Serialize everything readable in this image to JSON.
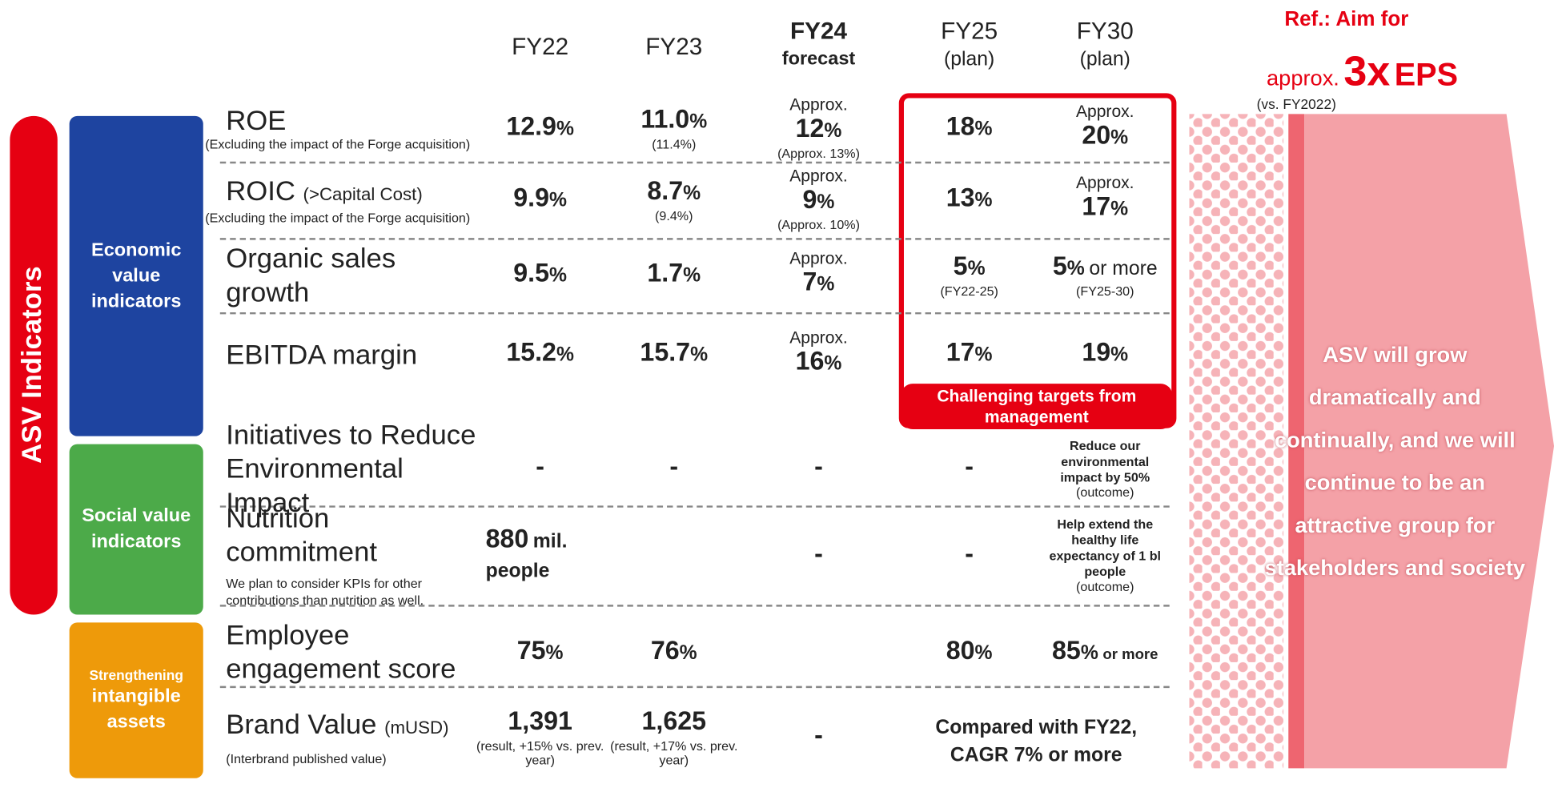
{
  "header": {
    "columns": [
      {
        "label": "FY22"
      },
      {
        "label": "FY23"
      },
      {
        "label": "FY24",
        "sub": "forecast"
      },
      {
        "label": "FY25",
        "sub": "(plan)"
      },
      {
        "label": "FY30",
        "sub": "(plan)"
      }
    ]
  },
  "ref": {
    "line1": "Ref.: Aim for",
    "prefix": "approx.",
    "big": "3x",
    "suffix": "EPS",
    "note": "(vs. FY2022)"
  },
  "side_label": "ASV Indicators",
  "groups": [
    {
      "label": "Economic value indicators"
    },
    {
      "label": "Social value indicators"
    },
    {
      "label_small": "Strengthening",
      "label": "intangible assets"
    }
  ],
  "rows": [
    {
      "label": "ROE",
      "note": "(Excluding the impact of the Forge acquisition)",
      "cells": [
        {
          "value": "12.9",
          "unit": "%"
        },
        {
          "value": "11.0",
          "unit": "%",
          "note": "(11.4%)"
        },
        {
          "pre": "Approx.",
          "value": "12",
          "unit": "%",
          "note": "(Approx. 13%)"
        },
        {
          "value": "18",
          "unit": "%"
        },
        {
          "pre": "Approx.",
          "value": "20",
          "unit": "%"
        }
      ]
    },
    {
      "label": "ROIC",
      "label_extra": "(>Capital Cost)",
      "note": "(Excluding the impact of the Forge acquisition)",
      "cells": [
        {
          "value": "9.9",
          "unit": "%"
        },
        {
          "value": "8.7",
          "unit": "%",
          "note": "(9.4%)"
        },
        {
          "pre": "Approx.",
          "value": "9",
          "unit": "%",
          "note": "(Approx. 10%)"
        },
        {
          "value": "13",
          "unit": "%"
        },
        {
          "pre": "Approx.",
          "value": "17",
          "unit": "%"
        }
      ]
    },
    {
      "label": "Organic sales growth",
      "cells": [
        {
          "value": "9.5",
          "unit": "%"
        },
        {
          "value": "1.7",
          "unit": "%"
        },
        {
          "pre": "Approx.",
          "value": "7",
          "unit": "%"
        },
        {
          "value": "5",
          "unit": "%",
          "note": "(FY22-25)"
        },
        {
          "value": "5",
          "unit": "%",
          "post": "or more",
          "note": "(FY25-30)"
        }
      ]
    },
    {
      "label": "EBITDA margin",
      "cells": [
        {
          "value": "15.2",
          "unit": "%"
        },
        {
          "value": "15.7",
          "unit": "%"
        },
        {
          "pre": "Approx.",
          "value": "16",
          "unit": "%"
        },
        {
          "value": "17",
          "unit": "%"
        },
        {
          "value": "19",
          "unit": "%"
        }
      ]
    },
    {
      "label": "Initiatives to Reduce Environmental Impact",
      "cells": [
        {
          "value": "-"
        },
        {
          "value": "-"
        },
        {
          "value": "-"
        },
        {
          "value": "-"
        },
        {
          "text": "Reduce our environmental impact by 50%",
          "note": "(outcome)"
        }
      ]
    },
    {
      "label": "Nutrition commitment",
      "sublabel": "We plan to consider KPIs for other contributions than nutrition as well.",
      "cells": [
        {
          "value": "880",
          "unit": "mil. people"
        },
        null,
        {
          "value": "-"
        },
        {
          "value": "-"
        },
        {
          "text": "Help extend the healthy life expectancy of 1 bl people",
          "note": "(outcome)"
        }
      ]
    },
    {
      "label": "Employee engagement score",
      "cells": [
        {
          "value": "75",
          "unit": "%"
        },
        {
          "value": "76",
          "unit": "%"
        },
        null,
        {
          "value": "80",
          "unit": "%"
        },
        {
          "value": "85",
          "unit": "%",
          "post": "or more"
        }
      ]
    },
    {
      "label": "Brand Value",
      "label_extra": "(mUSD)",
      "sublabel": "(Interbrand published value)",
      "cells": [
        {
          "value": "1,391",
          "note": "(result, +15% vs. prev. year)"
        },
        {
          "value": "1,625",
          "note": "(result, +17% vs. prev. year)"
        },
        {
          "value": "-"
        }
      ],
      "merged_text": "Compared with FY22, CAGR 7% or more"
    }
  ],
  "highlight_caption": "Challenging targets from management",
  "arrow_text": "ASV will grow dramatically and continually, and we will continue to be an attractive group for stakeholders and society"
}
